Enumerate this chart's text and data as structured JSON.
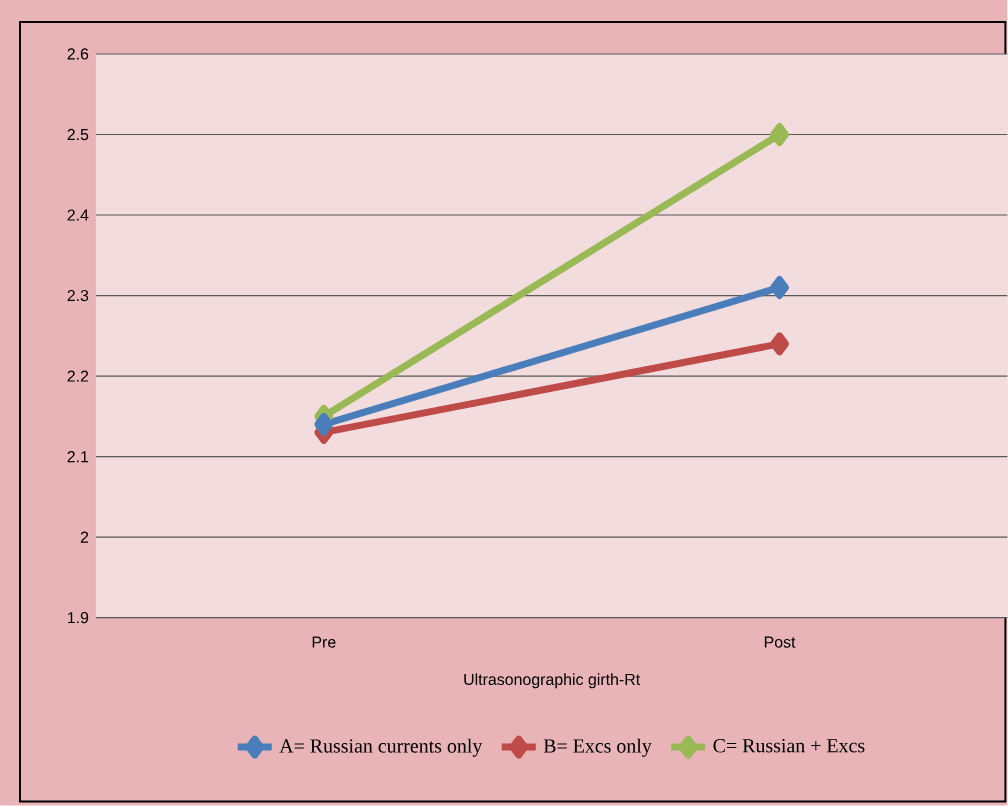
{
  "chart_data": {
    "type": "line",
    "xlabel": "Ultrasonographic girth-Rt",
    "categories": [
      "Pre",
      "Post"
    ],
    "series": [
      {
        "name": "A= Russian currents only",
        "color": "#4a7ebb",
        "values": [
          2.14,
          2.31
        ]
      },
      {
        "name": "B= Excs only",
        "color": "#be4b48",
        "values": [
          2.13,
          2.24
        ]
      },
      {
        "name": "C= Russian + Excs",
        "color": "#98b954",
        "values": [
          2.15,
          2.5
        ]
      }
    ],
    "ylim": [
      1.9,
      2.6
    ],
    "yticks": [
      1.9,
      2,
      2.1,
      2.2,
      2.3,
      2.4,
      2.5,
      2.6
    ],
    "grid": "y",
    "legend": "bottom",
    "marker": "diamond",
    "line_style": "solid"
  }
}
